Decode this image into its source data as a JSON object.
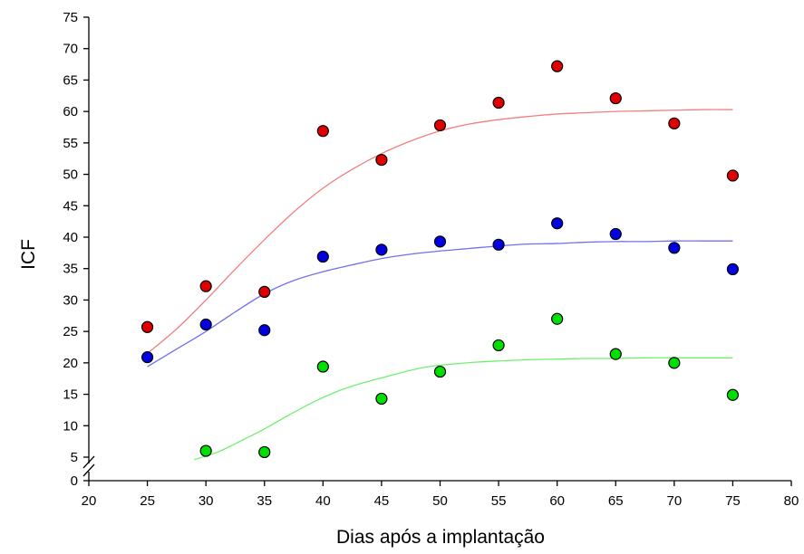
{
  "chart_data": {
    "type": "scatter",
    "title": "",
    "xlabel": "Dias após a implantação",
    "ylabel": "ICF",
    "xlim": [
      20,
      80
    ],
    "ylim": [
      0,
      75
    ],
    "axis_break": "y between 0 and 5",
    "grid": false,
    "x_ticks": [
      "20",
      "25",
      "30",
      "35",
      "40",
      "45",
      "50",
      "55",
      "60",
      "65",
      "70",
      "75",
      "80"
    ],
    "y_ticks": [
      "0",
      "5",
      "10",
      "15",
      "20",
      "25",
      "30",
      "35",
      "40",
      "45",
      "50",
      "55",
      "60",
      "65",
      "70",
      "75"
    ],
    "series": [
      {
        "color": "#e00000",
        "points": [
          [
            25,
            25.7
          ],
          [
            30,
            32.2
          ],
          [
            35,
            31.3
          ],
          [
            40,
            56.9
          ],
          [
            45,
            52.3
          ],
          [
            50,
            57.8
          ],
          [
            55,
            61.4
          ],
          [
            60,
            67.2
          ],
          [
            65,
            62.1
          ],
          [
            70,
            58.1
          ],
          [
            75,
            49.8
          ]
        ],
        "fit_curve": [
          [
            25,
            21.5
          ],
          [
            27.5,
            25.4
          ],
          [
            30,
            30.0
          ],
          [
            32.5,
            34.9
          ],
          [
            35,
            39.6
          ],
          [
            37.5,
            44.0
          ],
          [
            40,
            47.8
          ],
          [
            42.5,
            50.8
          ],
          [
            45,
            53.3
          ],
          [
            47.5,
            55.3
          ],
          [
            50,
            56.9
          ],
          [
            52.5,
            58.0
          ],
          [
            55,
            58.7
          ],
          [
            57.5,
            59.2
          ],
          [
            60,
            59.6
          ],
          [
            62.5,
            59.8
          ],
          [
            65,
            60.0
          ],
          [
            67.5,
            60.1
          ],
          [
            70,
            60.2
          ],
          [
            72.5,
            60.3
          ],
          [
            75,
            60.3
          ]
        ]
      },
      {
        "color": "#0000e0",
        "points": [
          [
            25,
            20.9
          ],
          [
            30,
            26.1
          ],
          [
            35,
            25.2
          ],
          [
            40,
            36.9
          ],
          [
            45,
            38.0
          ],
          [
            50,
            39.3
          ],
          [
            55,
            38.8
          ],
          [
            60,
            42.2
          ],
          [
            65,
            40.5
          ],
          [
            70,
            38.3
          ],
          [
            75,
            34.9
          ]
        ],
        "fit_curve": [
          [
            25,
            19.4
          ],
          [
            27.5,
            22.2
          ],
          [
            30,
            25.0
          ],
          [
            32.5,
            28.1
          ],
          [
            35,
            31.0
          ],
          [
            37.5,
            33.1
          ],
          [
            40,
            34.5
          ],
          [
            42.5,
            35.6
          ],
          [
            45,
            36.6
          ],
          [
            47.5,
            37.3
          ],
          [
            50,
            37.8
          ],
          [
            52.5,
            38.2
          ],
          [
            55,
            38.6
          ],
          [
            57.5,
            38.9
          ],
          [
            60,
            39.0
          ],
          [
            62.5,
            39.2
          ],
          [
            65,
            39.3
          ],
          [
            67.5,
            39.3
          ],
          [
            70,
            39.4
          ],
          [
            72.5,
            39.4
          ],
          [
            75,
            39.4
          ]
        ]
      },
      {
        "color": "#00e000",
        "points": [
          [
            30,
            6.0
          ],
          [
            35,
            5.8
          ],
          [
            40,
            19.4
          ],
          [
            45,
            14.3
          ],
          [
            50,
            18.6
          ],
          [
            55,
            22.8
          ],
          [
            60,
            27.0
          ],
          [
            65,
            21.4
          ],
          [
            70,
            20.0
          ],
          [
            75,
            14.9
          ]
        ],
        "fit_curve": [
          [
            29,
            4.6
          ],
          [
            31,
            5.8
          ],
          [
            33,
            7.6
          ],
          [
            35,
            9.5
          ],
          [
            37,
            11.6
          ],
          [
            39,
            13.6
          ],
          [
            41,
            15.3
          ],
          [
            43,
            16.6
          ],
          [
            45,
            17.6
          ],
          [
            47,
            18.6
          ],
          [
            49,
            19.4
          ],
          [
            51,
            19.8
          ],
          [
            53,
            20.1
          ],
          [
            55,
            20.3
          ],
          [
            57.5,
            20.5
          ],
          [
            60,
            20.6
          ],
          [
            62.5,
            20.7
          ],
          [
            65,
            20.7
          ],
          [
            67.5,
            20.8
          ],
          [
            70,
            20.8
          ],
          [
            72.5,
            20.8
          ],
          [
            75,
            20.8
          ]
        ]
      }
    ]
  }
}
